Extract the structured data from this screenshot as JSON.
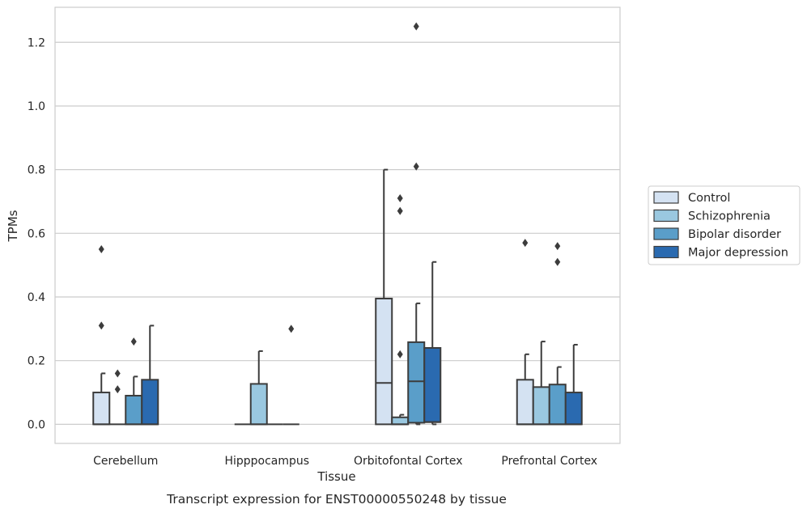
{
  "chart_data": {
    "type": "box",
    "xlabel": "Tissue",
    "ylabel": "TPMs",
    "caption": "Transcript expression for ENST00000550248 by tissue",
    "categories": [
      "Cerebellum",
      "Hipppocampus",
      "Orbitofontal Cortex",
      "Prefrontal Cortex"
    ],
    "ylim": [
      -0.06,
      1.31
    ],
    "yticks": [
      0.0,
      0.2,
      0.4,
      0.6,
      0.8,
      1.0,
      1.2
    ],
    "ytick_labels": [
      "0.0",
      "0.2",
      "0.4",
      "0.6",
      "0.8",
      "1.0",
      "1.2"
    ],
    "grid": "horizontal",
    "legend_position": "right",
    "series": [
      {
        "name": "Control",
        "color": "#d4e2f2",
        "boxes": [
          {
            "q1": 0.0,
            "median": 0.0,
            "q3": 0.1,
            "whisker_low": 0.0,
            "whisker_high": 0.16,
            "outliers": [
              0.31,
              0.55
            ]
          },
          {
            "q1": 0.0,
            "median": 0.0,
            "q3": 0.0,
            "whisker_low": 0.0,
            "whisker_high": 0.0,
            "outliers": []
          },
          {
            "q1": 0.0,
            "median": 0.13,
            "q3": 0.395,
            "whisker_low": 0.0,
            "whisker_high": 0.8,
            "outliers": []
          },
          {
            "q1": 0.0,
            "median": 0.0,
            "q3": 0.14,
            "whisker_low": 0.0,
            "whisker_high": 0.22,
            "outliers": [
              0.57
            ]
          }
        ]
      },
      {
        "name": "Schizophrenia",
        "color": "#9ac8e0",
        "boxes": [
          {
            "q1": 0.0,
            "median": 0.0,
            "q3": 0.0,
            "whisker_low": 0.0,
            "whisker_high": 0.0,
            "outliers": [
              0.11,
              0.16
            ]
          },
          {
            "q1": 0.0,
            "median": 0.0,
            "q3": 0.127,
            "whisker_low": 0.0,
            "whisker_high": 0.23,
            "outliers": []
          },
          {
            "q1": 0.0,
            "median": 0.0,
            "q3": 0.022,
            "whisker_low": 0.0,
            "whisker_high": 0.03,
            "outliers": [
              0.22,
              0.67,
              0.71
            ]
          },
          {
            "q1": 0.0,
            "median": 0.0,
            "q3": 0.117,
            "whisker_low": 0.0,
            "whisker_high": 0.26,
            "outliers": []
          }
        ]
      },
      {
        "name": "Bipolar disorder",
        "color": "#5a9ec9",
        "boxes": [
          {
            "q1": 0.0,
            "median": 0.0,
            "q3": 0.09,
            "whisker_low": 0.0,
            "whisker_high": 0.15,
            "outliers": [
              0.26
            ]
          },
          {
            "q1": 0.0,
            "median": 0.0,
            "q3": 0.0,
            "whisker_low": 0.0,
            "whisker_high": 0.0,
            "outliers": []
          },
          {
            "q1": 0.005,
            "median": 0.135,
            "q3": 0.258,
            "whisker_low": 0.0,
            "whisker_high": 0.38,
            "outliers": [
              0.81,
              1.25
            ]
          },
          {
            "q1": 0.0,
            "median": 0.0,
            "q3": 0.125,
            "whisker_low": 0.0,
            "whisker_high": 0.18,
            "outliers": [
              0.51,
              0.56
            ]
          }
        ]
      },
      {
        "name": "Major depression",
        "color": "#2a6ab0",
        "boxes": [
          {
            "q1": 0.0,
            "median": 0.0,
            "q3": 0.14,
            "whisker_low": 0.0,
            "whisker_high": 0.31,
            "outliers": []
          },
          {
            "q1": 0.0,
            "median": 0.0,
            "q3": 0.0,
            "whisker_low": 0.0,
            "whisker_high": 0.0,
            "outliers": [
              0.3
            ]
          },
          {
            "q1": 0.007,
            "median": 0.007,
            "q3": 0.24,
            "whisker_low": 0.0,
            "whisker_high": 0.51,
            "outliers": []
          },
          {
            "q1": 0.0,
            "median": 0.0,
            "q3": 0.1,
            "whisker_low": 0.0,
            "whisker_high": 0.25,
            "outliers": []
          }
        ]
      }
    ]
  }
}
